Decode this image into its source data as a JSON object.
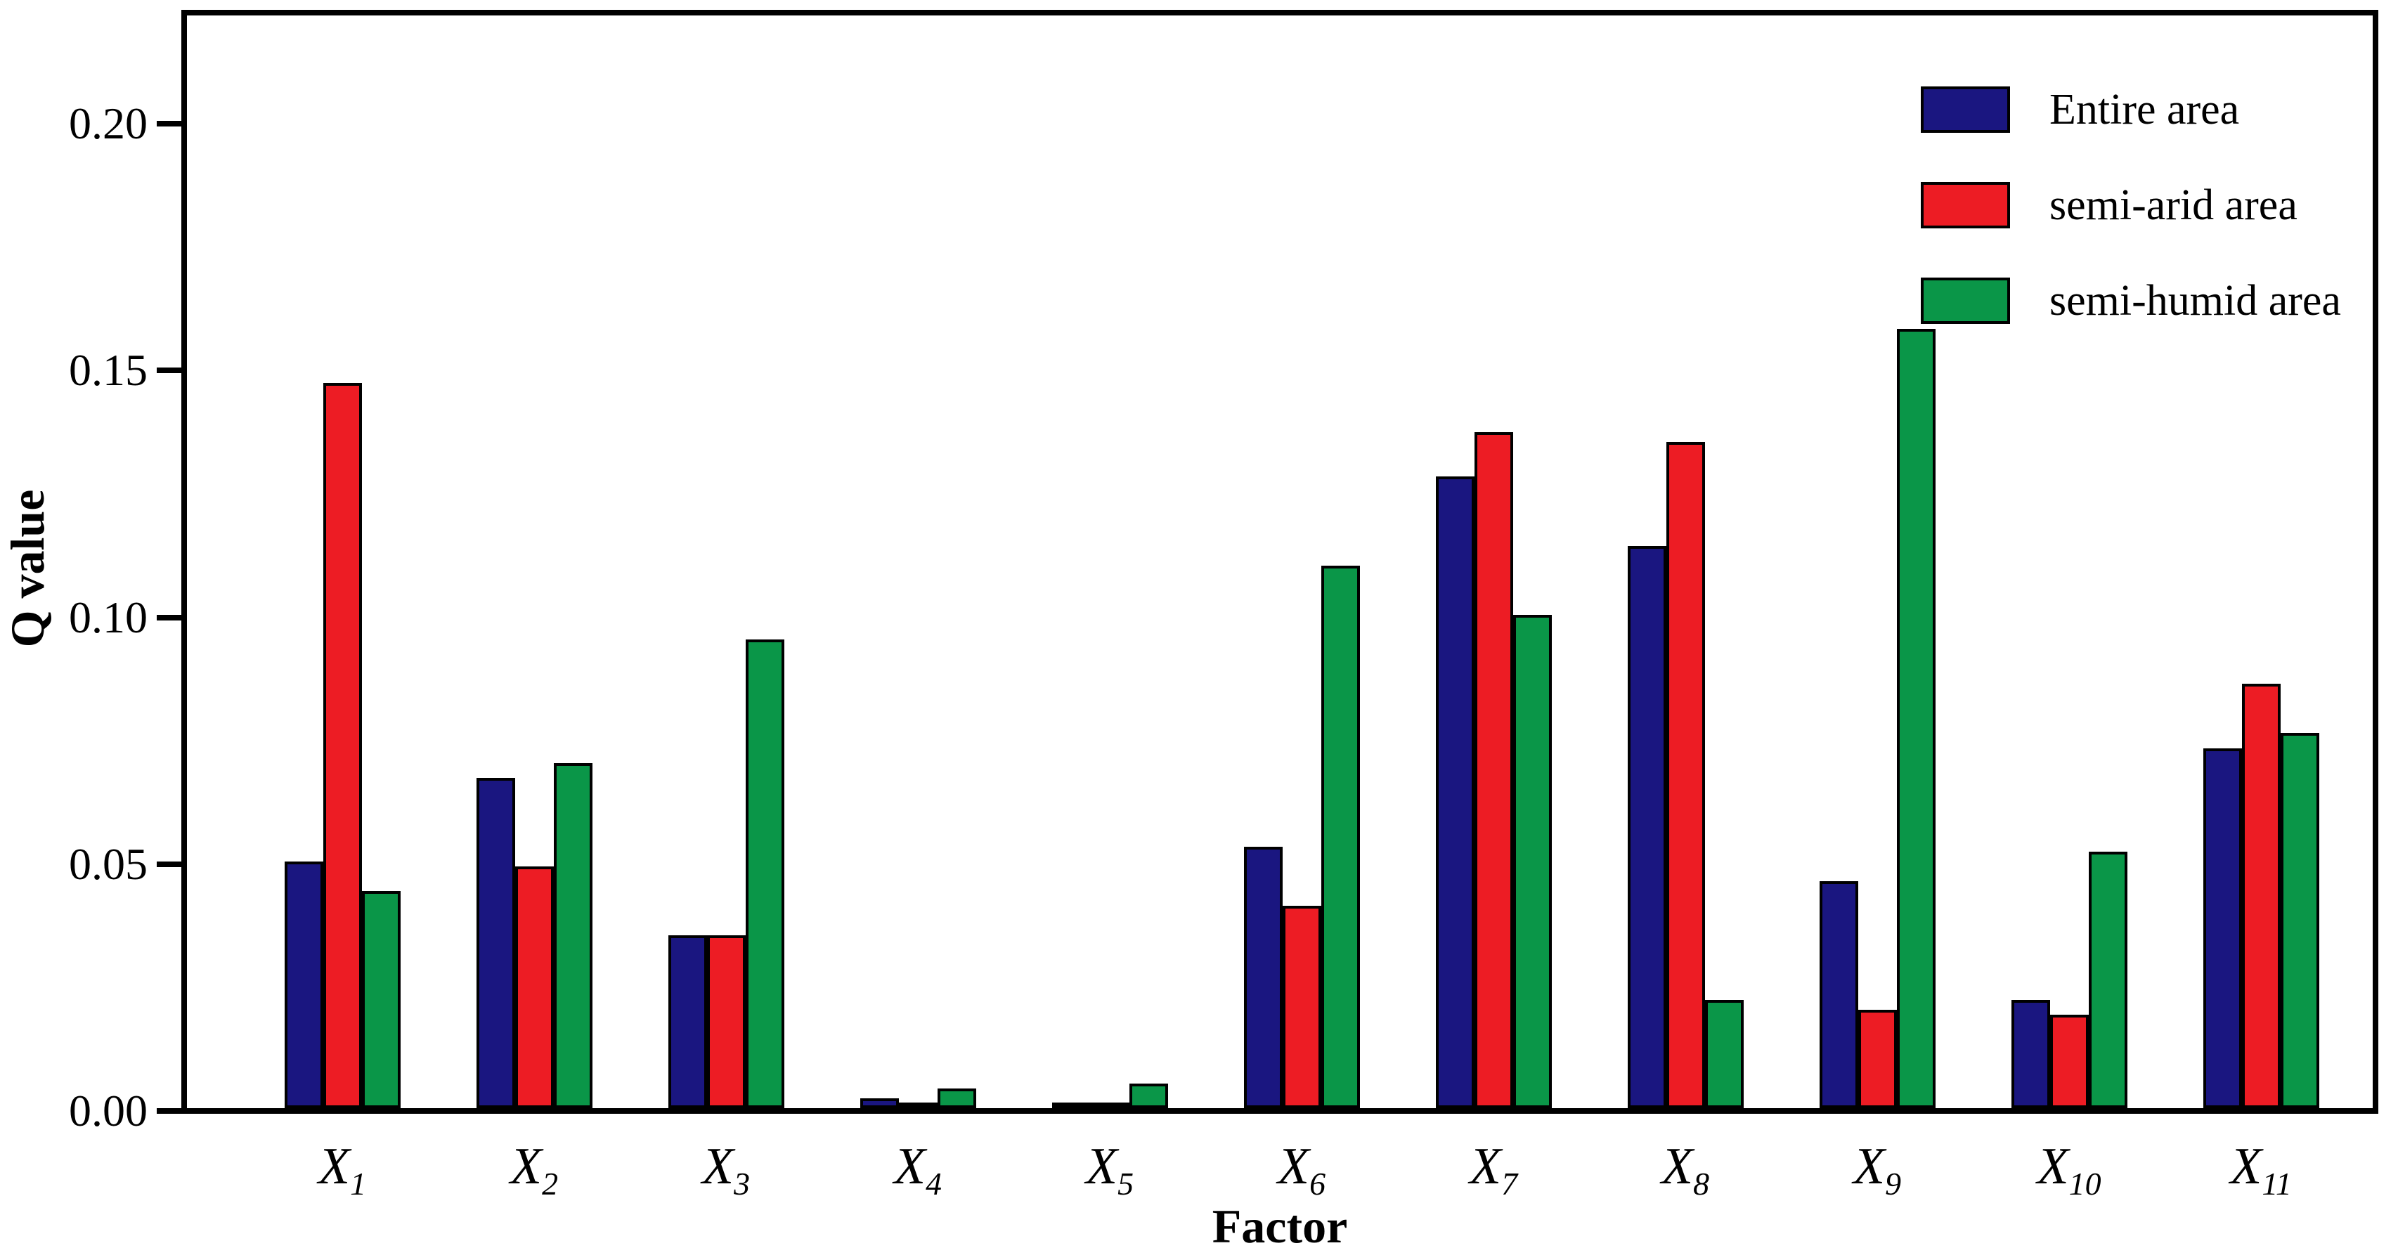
{
  "chart_data": {
    "type": "bar",
    "title": "",
    "xlabel": "Factor",
    "ylabel": "Q value",
    "categories": [
      "X1",
      "X2",
      "X3",
      "X4",
      "X5",
      "X6",
      "X7",
      "X8",
      "X9",
      "X10",
      "X11"
    ],
    "series": [
      {
        "name": "Entire area",
        "color": "#1a1680",
        "values": [
          0.05,
          0.067,
          0.035,
          0.002,
          0.001,
          0.053,
          0.128,
          0.114,
          0.046,
          0.022,
          0.073
        ]
      },
      {
        "name": "semi-arid area",
        "color": "#ed1c24",
        "values": [
          0.147,
          0.049,
          0.035,
          0.001,
          0.0005,
          0.041,
          0.137,
          0.135,
          0.02,
          0.019,
          0.086
        ]
      },
      {
        "name": "semi-humid area",
        "color": "#0a9648",
        "values": [
          0.044,
          0.07,
          0.095,
          0.004,
          0.005,
          0.11,
          0.1,
          0.022,
          0.158,
          0.052,
          0.076
        ]
      }
    ],
    "yticks": [
      "0.00",
      "0.05",
      "0.10",
      "0.15",
      "0.20"
    ],
    "ylim": [
      0,
      0.222
    ],
    "grid": false,
    "legend_position": "upper right",
    "axis_color": "#000000",
    "background_color": "#ffffff"
  }
}
